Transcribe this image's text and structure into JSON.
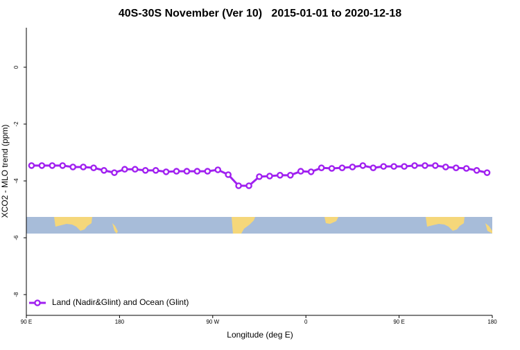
{
  "chart_data": {
    "type": "line",
    "title": "40S-30S November (Ver 10)   2015-01-01 to 2020-12-18",
    "x_label": "Longitude (deg E)",
    "y_label": "XCO2 - MLO trend (ppm)",
    "xlim": [
      90,
      540
    ],
    "xticks": [
      {
        "value": 90,
        "label": "90 E"
      },
      {
        "value": 180,
        "label": "180"
      },
      {
        "value": 270,
        "label": "90 W"
      },
      {
        "value": 360,
        "label": "0"
      },
      {
        "value": 450,
        "label": "90 E"
      },
      {
        "value": 540,
        "label": "180"
      }
    ],
    "ylim": [
      -8.73,
      1.39
    ],
    "yticks": [
      0,
      -2,
      -4,
      -6,
      -8
    ],
    "legend": "bottom-left",
    "x": [
      95,
      105,
      115,
      125,
      135,
      145,
      155,
      165,
      175,
      185,
      195,
      205,
      215,
      225,
      235,
      245,
      255,
      265,
      275,
      285,
      295,
      305,
      315,
      325,
      335,
      345,
      355,
      365,
      375,
      385,
      395,
      405,
      415,
      425,
      435,
      445,
      455,
      465,
      475,
      485,
      495,
      505,
      515,
      525,
      535
    ],
    "series": [
      {
        "name": "Land (Nadir&Glint) and Ocean (Glint)",
        "color": "#a020f0",
        "values": [
          -3.46,
          -3.46,
          -3.46,
          -3.46,
          -3.51,
          -3.51,
          -3.54,
          -3.63,
          -3.71,
          -3.59,
          -3.59,
          -3.63,
          -3.63,
          -3.68,
          -3.66,
          -3.66,
          -3.66,
          -3.66,
          -3.61,
          -3.78,
          -4.17,
          -4.17,
          -3.85,
          -3.83,
          -3.8,
          -3.8,
          -3.66,
          -3.68,
          -3.54,
          -3.56,
          -3.54,
          -3.51,
          -3.46,
          -3.54,
          -3.49,
          -3.49,
          -3.49,
          -3.46,
          -3.46,
          -3.46,
          -3.51,
          -3.54,
          -3.56,
          -3.63,
          -3.71
        ]
      }
    ]
  }
}
